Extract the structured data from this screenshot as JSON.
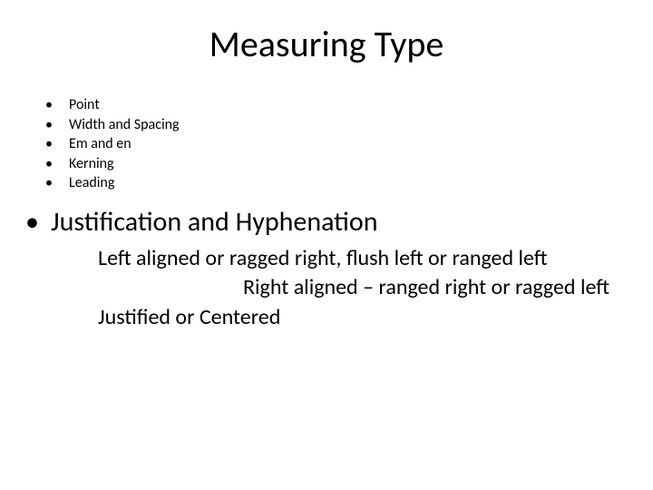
{
  "title": "Measuring Type",
  "small_items": [
    "Point",
    "Width and Spacing",
    "Em and en",
    "Kerning",
    "Leading"
  ],
  "big_item": "Justification and Hyphenation",
  "sub_lines": [
    {
      "text": "Left aligned or ragged right, flush left or ranged left",
      "indent": false
    },
    {
      "text": "Right aligned – ranged right or ragged left",
      "indent": true
    },
    {
      "text": "Justified or Centered",
      "indent": false
    }
  ],
  "colors": {
    "background": "#ffffff",
    "text": "#000000"
  },
  "fonts": {
    "title_size": 40,
    "small_bullet_size": 16,
    "big_bullet_size": 30,
    "sub_line_size": 24
  }
}
